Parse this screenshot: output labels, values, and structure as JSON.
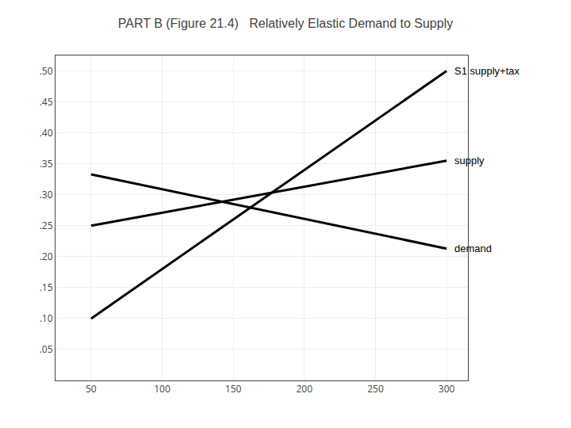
{
  "chart_data": {
    "type": "line",
    "title": "PART B (Figure 21.4)   Relatively Elastic Demand to Supply",
    "x": [
      50,
      300
    ],
    "series": [
      {
        "name": "S1 supply+tax",
        "color": "#000000",
        "values": [
          0.1,
          0.5
        ]
      },
      {
        "name": "supply",
        "color": "#000000",
        "values": [
          0.25,
          0.355
        ]
      },
      {
        "name": "demand",
        "color": "#000000",
        "values": [
          0.333,
          0.213
        ]
      }
    ],
    "xlim": [
      25,
      315
    ],
    "ylim": [
      0,
      0.525
    ],
    "xticks": [
      50,
      100,
      150,
      200,
      250,
      300
    ],
    "yticks": [
      {
        "value": 0.05,
        "label": ".05"
      },
      {
        "value": 0.1,
        "label": ".10"
      },
      {
        "value": 0.15,
        "label": ".15"
      },
      {
        "value": 0.2,
        "label": ".20"
      },
      {
        "value": 0.25,
        "label": ".25"
      },
      {
        "value": 0.3,
        "label": ".30"
      },
      {
        "value": 0.35,
        "label": ".35"
      },
      {
        "value": 0.4,
        "label": ".40"
      },
      {
        "value": 0.45,
        "label": ".45"
      },
      {
        "value": 0.5,
        "label": ".50"
      }
    ],
    "grid": true
  }
}
